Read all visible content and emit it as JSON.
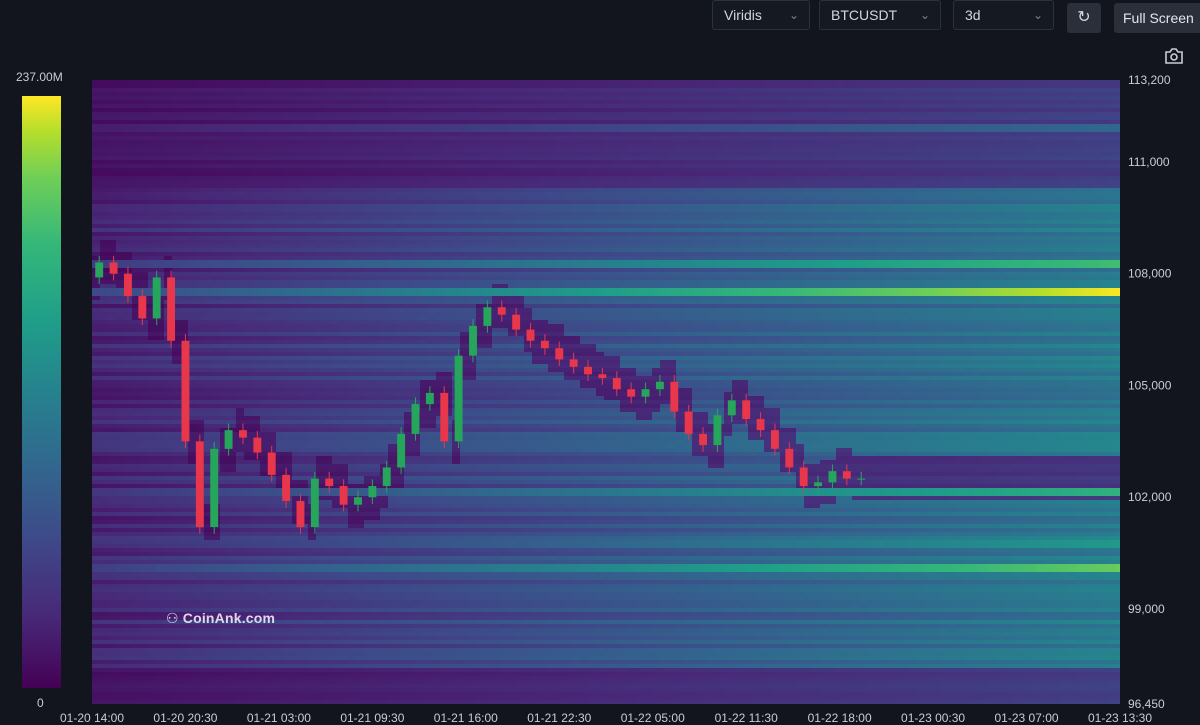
{
  "toolbar": {
    "colormap": "Viridis",
    "symbol": "BTCUSDT",
    "range": "3d",
    "refresh_icon": "refresh-icon",
    "fullscreen_label": "Full Screen",
    "camera_icon": "camera-icon"
  },
  "watermark": "CoinAnk.com",
  "colors": {
    "background": "#12151d",
    "heatmap_low": "#440154",
    "heatmap_high": "#fde725",
    "candle_up": "#26a65b",
    "candle_down": "#e8364a"
  },
  "chart_data": {
    "type": "heatmap",
    "colorscale": "Viridis",
    "colorbar": {
      "min_label": "0",
      "max_label": "237.00M"
    },
    "y_ticks": [
      "113,200",
      "111,000",
      "108,000",
      "105,000",
      "102,000",
      "99,000",
      "96,450"
    ],
    "y_tick_values": [
      113200,
      111000,
      108000,
      105000,
      102000,
      99000,
      96450
    ],
    "ylim": [
      96450,
      113200
    ],
    "x_ticks": [
      "01-20 14:00",
      "01-20 20:30",
      "01-21 03:00",
      "01-21 09:30",
      "01-21 16:00",
      "01-21 22:30",
      "01-22 05:00",
      "01-22 11:30",
      "01-22 18:00",
      "01-23 00:30",
      "01-23 07:00",
      "01-23 13:30"
    ],
    "xlim_hours": [
      0,
      71.5
    ],
    "price_hourly": [
      107900,
      108300,
      108000,
      107400,
      106800,
      107900,
      106200,
      103500,
      101200,
      103300,
      103800,
      103600,
      103200,
      102600,
      101900,
      101200,
      102500,
      102300,
      101800,
      102000,
      102300,
      102800,
      103700,
      104500,
      104800,
      103500,
      105800,
      106600,
      107100,
      106900,
      106500,
      106200,
      106000,
      105700,
      105500,
      105300,
      105200,
      104900,
      104700,
      104900,
      105100,
      104300,
      103700,
      103400,
      104200,
      104600,
      104100,
      103800,
      103300,
      102800,
      102300,
      102400,
      102700,
      102500
    ],
    "liquidation_bands": [
      {
        "price": 107500,
        "intensity": 1.0
      },
      {
        "price": 108250,
        "intensity": 0.78
      },
      {
        "price": 102150,
        "intensity": 0.72
      },
      {
        "price": 100100,
        "intensity": 0.85
      },
      {
        "price": 100700,
        "intensity": 0.6
      },
      {
        "price": 109800,
        "intensity": 0.5
      },
      {
        "price": 111900,
        "intensity": 0.38
      }
    ]
  }
}
